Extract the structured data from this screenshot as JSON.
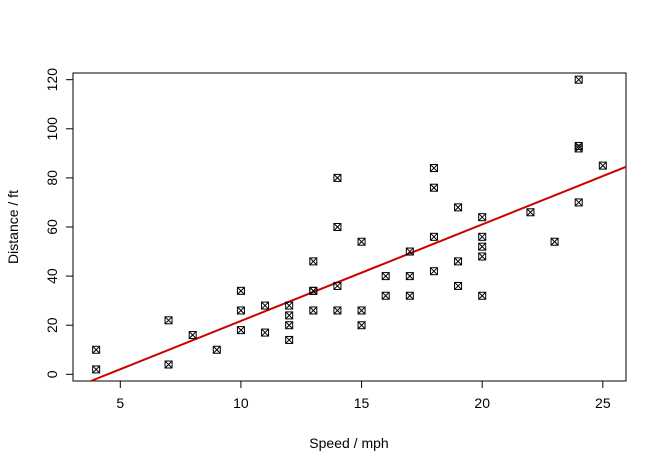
{
  "chart_data": {
    "type": "scatter",
    "xlabel": "Speed / mph",
    "ylabel": "Distance / ft",
    "xlim": [
      3.04,
      25.96
    ],
    "ylim": [
      -2.72,
      122.72
    ],
    "xticks": [
      5,
      10,
      15,
      20,
      25
    ],
    "yticks": [
      0,
      20,
      40,
      60,
      80,
      100,
      120
    ],
    "grid": false,
    "legend": "none",
    "colors": {
      "points": "#000000",
      "fit_line": "#cc0000"
    },
    "marker": "square-x",
    "points": [
      {
        "x": 4,
        "y": 2
      },
      {
        "x": 4,
        "y": 10
      },
      {
        "x": 7,
        "y": 4
      },
      {
        "x": 7,
        "y": 22
      },
      {
        "x": 8,
        "y": 16
      },
      {
        "x": 9,
        "y": 10
      },
      {
        "x": 10,
        "y": 18
      },
      {
        "x": 10,
        "y": 26
      },
      {
        "x": 10,
        "y": 34
      },
      {
        "x": 11,
        "y": 17
      },
      {
        "x": 11,
        "y": 28
      },
      {
        "x": 12,
        "y": 14
      },
      {
        "x": 12,
        "y": 20
      },
      {
        "x": 12,
        "y": 24
      },
      {
        "x": 12,
        "y": 28
      },
      {
        "x": 13,
        "y": 26
      },
      {
        "x": 13,
        "y": 34
      },
      {
        "x": 13,
        "y": 34
      },
      {
        "x": 13,
        "y": 46
      },
      {
        "x": 14,
        "y": 26
      },
      {
        "x": 14,
        "y": 36
      },
      {
        "x": 14,
        "y": 60
      },
      {
        "x": 14,
        "y": 80
      },
      {
        "x": 15,
        "y": 20
      },
      {
        "x": 15,
        "y": 26
      },
      {
        "x": 15,
        "y": 54
      },
      {
        "x": 16,
        "y": 32
      },
      {
        "x": 16,
        "y": 40
      },
      {
        "x": 17,
        "y": 32
      },
      {
        "x": 17,
        "y": 40
      },
      {
        "x": 17,
        "y": 50
      },
      {
        "x": 18,
        "y": 42
      },
      {
        "x": 18,
        "y": 56
      },
      {
        "x": 18,
        "y": 76
      },
      {
        "x": 18,
        "y": 84
      },
      {
        "x": 19,
        "y": 36
      },
      {
        "x": 19,
        "y": 46
      },
      {
        "x": 19,
        "y": 68
      },
      {
        "x": 20,
        "y": 32
      },
      {
        "x": 20,
        "y": 48
      },
      {
        "x": 20,
        "y": 52
      },
      {
        "x": 20,
        "y": 56
      },
      {
        "x": 20,
        "y": 64
      },
      {
        "x": 22,
        "y": 66
      },
      {
        "x": 23,
        "y": 54
      },
      {
        "x": 24,
        "y": 70
      },
      {
        "x": 24,
        "y": 92
      },
      {
        "x": 24,
        "y": 93
      },
      {
        "x": 24,
        "y": 120
      },
      {
        "x": 25,
        "y": 85
      }
    ],
    "fit_line": {
      "intercept": -17.58,
      "slope": 3.932
    }
  }
}
